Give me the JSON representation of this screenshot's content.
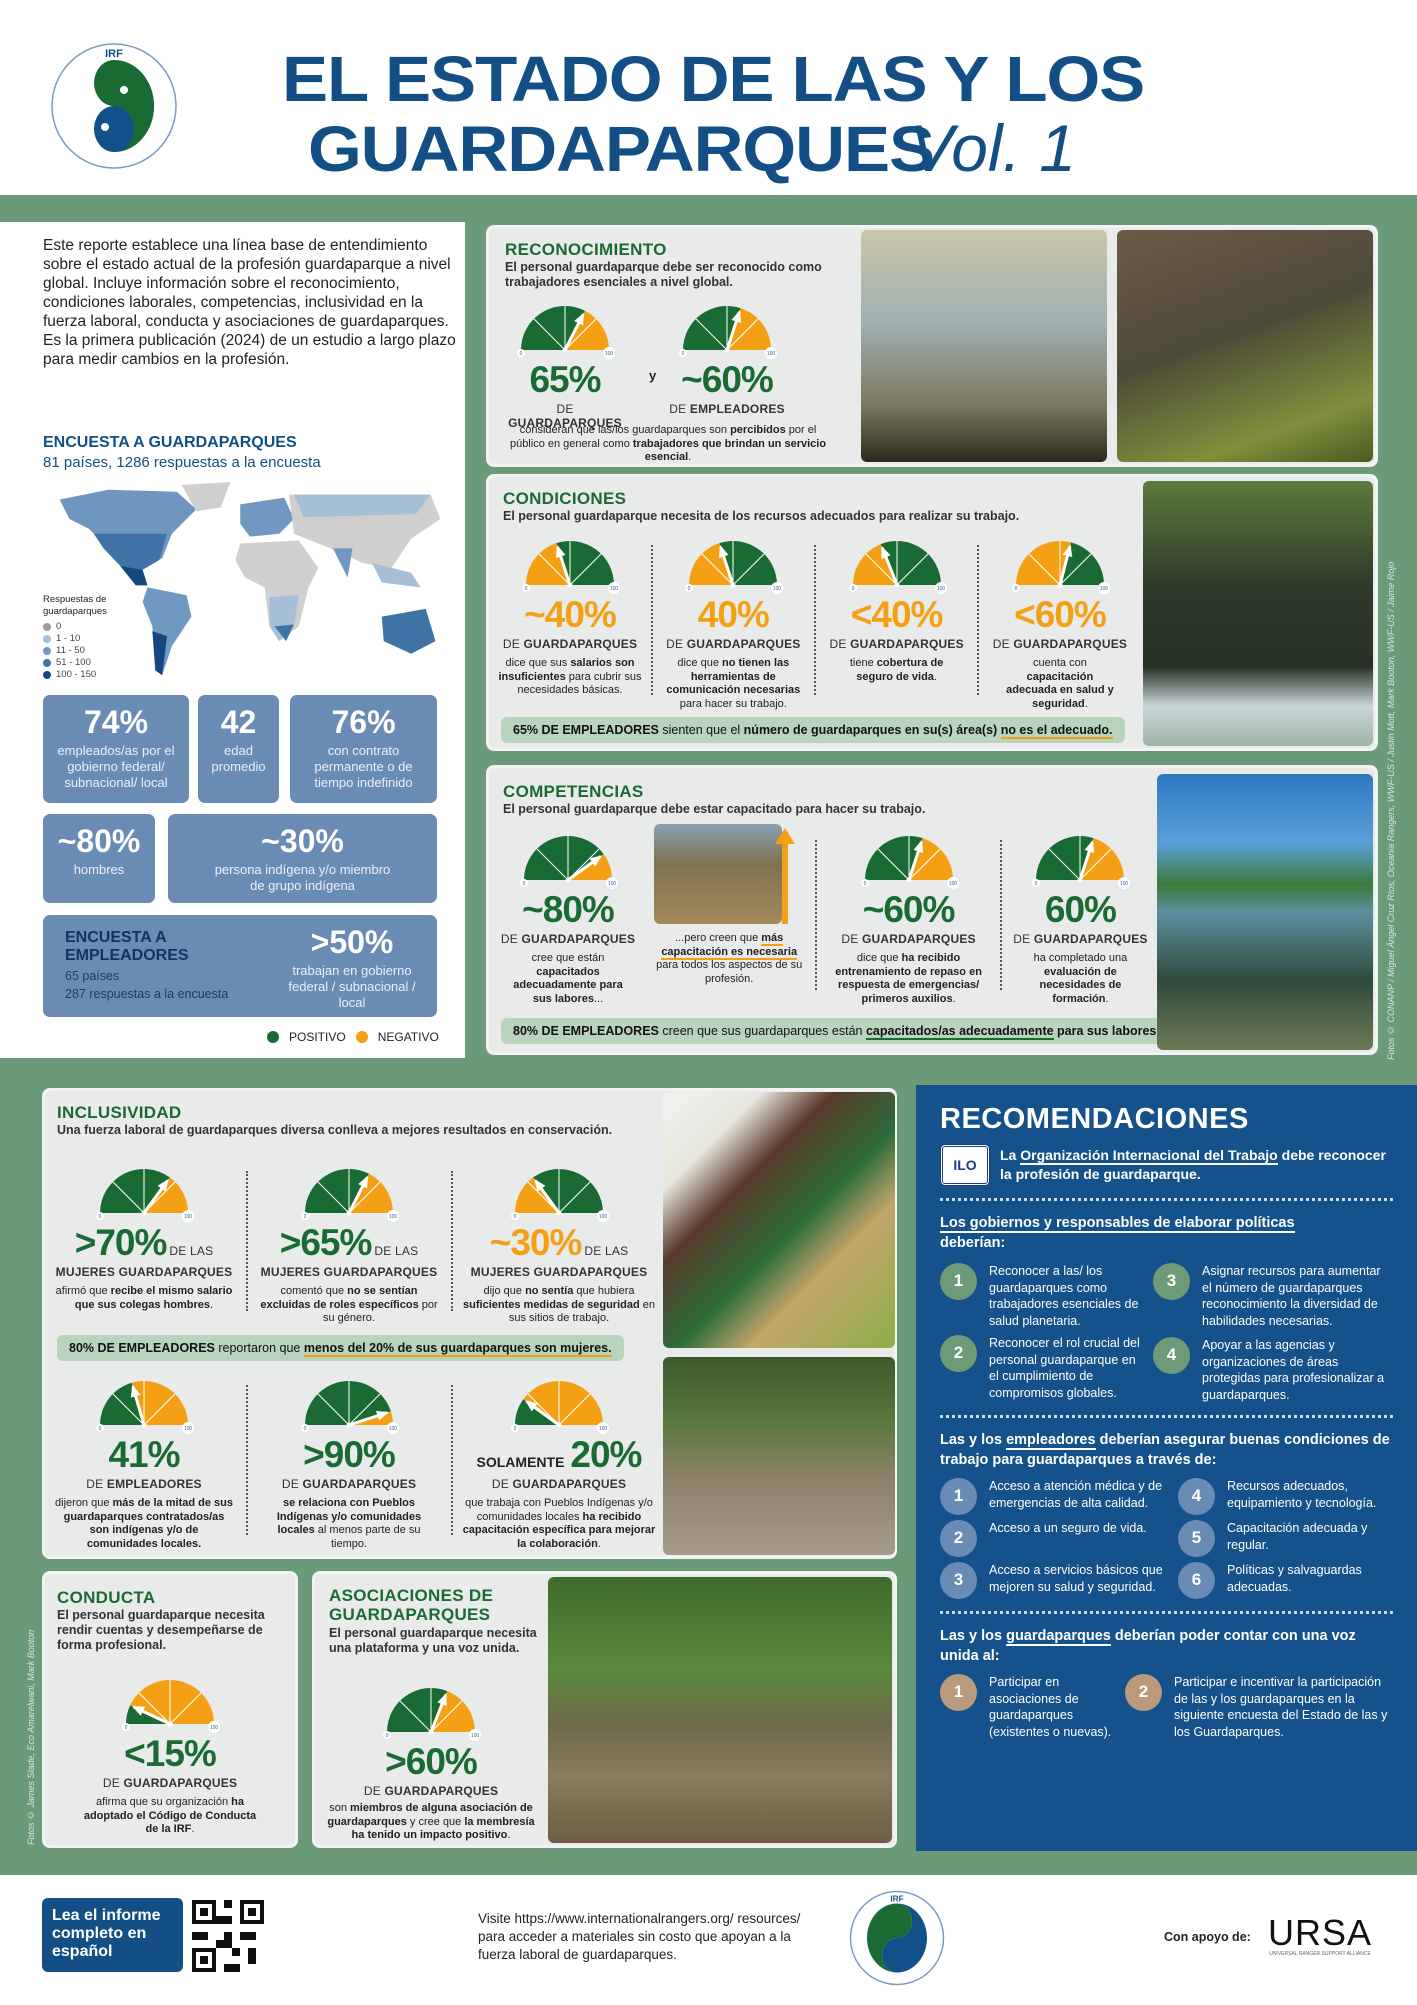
{
  "colors": {
    "positive": "#1a6b33",
    "negative": "#f4a015",
    "navy": "#134f85",
    "stat_box": "#6a8cb4",
    "background": "#6b9a78",
    "card": "#e9eaea",
    "bar": "#b9d4bd",
    "rec_circle_green": "#6f9a77",
    "rec_circle_blue": "#6a8cb4",
    "rec_circle_tan": "#b99a7c"
  },
  "logo": {
    "acronym": "IRF",
    "ring_text": "INTERNATIONAL RANGER FEDERATION"
  },
  "header": {
    "title_line1": "EL ESTADO DE LAS Y LOS",
    "title_line2": "GUARDAPARQUES",
    "title_vol": "Vol. 1"
  },
  "intro": "Este reporte establece una línea base de entendimiento sobre el estado actual de la profesión guardaparque a nivel global. Incluye información sobre el reconocimiento, condiciones laborales, competencias, inclusividad en la fuerza laboral, conducta y asociaciones de guardaparques. Es la primera publicación (2024) de un estudio a largo plazo para medir cambios en la profesión.",
  "ranger_survey": {
    "title": "ENCUESTA A GUARDAPARQUES",
    "subtitle": "81 países, 1286 respuestas a la encuesta",
    "legend_title": "Respuestas de guardaparques",
    "legend": [
      {
        "label": "0",
        "color": "#9a9a9a"
      },
      {
        "label": "1 - 10",
        "color": "#a7bfd6"
      },
      {
        "label": "11 - 50",
        "color": "#7198c0"
      },
      {
        "label": "51 - 100",
        "color": "#3f72a5"
      },
      {
        "label": "100 - 150",
        "color": "#12487e"
      }
    ]
  },
  "stats": [
    {
      "value": "74%",
      "label": "empleados/as por el gobierno federal/ subnacional/ local"
    },
    {
      "value": "42",
      "label": "edad promedio"
    },
    {
      "value": "76%",
      "label": "con contrato permanente o de tiempo indefinido"
    },
    {
      "value": "~80%",
      "label": "hombres"
    },
    {
      "value": "~30%",
      "label": "persona indígena y/o miembro de grupo indígena"
    }
  ],
  "employer_survey": {
    "title": "ENCUESTA A EMPLEADORES",
    "countries": "65 países",
    "responses": "287 respuestas a la encuesta",
    "value": ">50%",
    "label": "trabajan en gobierno federal / subnacional / local"
  },
  "key": {
    "positive": "POSITIVO",
    "negative": "NEGATIVO"
  },
  "gauge_scale": {
    "min": "0",
    "max": "100"
  },
  "reconocimiento": {
    "title": "RECONOCIMIENTO",
    "subtitle": "El personal guardaparque debe ser reconocido como trabajadores esenciales a nivel global.",
    "joiner": "y",
    "stats": [
      {
        "value": "65%",
        "gauge": 65,
        "left": "positive",
        "prefix": "DE",
        "group": "GUARDAPARQUES"
      },
      {
        "value": "~60%",
        "gauge": 60,
        "left": "positive",
        "prefix": "DE",
        "group": "EMPLEADORES"
      }
    ],
    "desc": [
      {
        "t": "consideran que las/los guardaparques son "
      },
      {
        "t": "percibidos",
        "b": true
      },
      {
        "t": " por el público en general como "
      },
      {
        "t": "trabajadores que brindan un servicio esencial",
        "b": true
      },
      {
        "t": "."
      }
    ]
  },
  "condiciones": {
    "title": "CONDICIONES",
    "subtitle": "El personal guardaparque necesita de los recursos adecuados para realizar su trabajo.",
    "stats": [
      {
        "value": "~40%",
        "gauge": 40,
        "left": "negative",
        "prefix": "DE",
        "group": "GUARDAPARQUES",
        "desc": [
          {
            "t": "dice que sus "
          },
          {
            "t": "salarios son insuficientes",
            "b": true
          },
          {
            "t": " para cubrir sus necesidades básicas."
          }
        ]
      },
      {
        "value": "40%",
        "gauge": 40,
        "left": "negative",
        "prefix": "DE",
        "group": "GUARDAPARQUES",
        "desc": [
          {
            "t": "dice que "
          },
          {
            "t": "no tienen las herramientas de comunicación necesarias",
            "b": true
          },
          {
            "t": " para hacer su trabajo."
          }
        ]
      },
      {
        "value": "<40%",
        "gauge": 38,
        "left": "negative",
        "prefix": "DE",
        "group": "GUARDAPARQUES",
        "desc": [
          {
            "t": "tiene "
          },
          {
            "t": "cobertura de seguro de vida",
            "b": true
          },
          {
            "t": "."
          }
        ]
      },
      {
        "value": "<60%",
        "gauge": 58,
        "left": "negative",
        "prefix": "DE",
        "group": "GUARDAPARQUES",
        "desc": [
          {
            "t": "cuenta con "
          },
          {
            "t": "capacitación adecuada en salud y seguridad",
            "b": true
          },
          {
            "t": "."
          }
        ]
      }
    ],
    "bar": [
      {
        "t": "65% DE EMPLEADORES",
        "b": true
      },
      {
        "t": " sienten que el "
      },
      {
        "t": "número de guardaparques en su(s) área(s) ",
        "b": true
      },
      {
        "t": "no es el adecuado.",
        "u": true
      }
    ]
  },
  "competencias": {
    "title": "COMPETENCIAS",
    "subtitle": "El personal guardaparque debe estar capacitado para hacer su trabajo.",
    "stats": [
      {
        "value": "~80%",
        "gauge": 80,
        "left": "positive",
        "prefix": "DE",
        "group": "GUARDAPARQUES",
        "desc": [
          {
            "t": "cree que están "
          },
          {
            "t": "capacitados adecuadamente para sus labores",
            "b": true
          },
          {
            "t": "..."
          }
        ]
      },
      {
        "value": "~60%",
        "gauge": 60,
        "left": "positive",
        "prefix": "DE",
        "group": "GUARDAPARQUES",
        "desc": [
          {
            "t": "dice que "
          },
          {
            "t": "ha recibido entrenamiento de repaso en respuesta de emergencias/ primeros auxilios",
            "b": true
          },
          {
            "t": "."
          }
        ]
      },
      {
        "value": "60%",
        "gauge": 60,
        "left": "positive",
        "prefix": "DE",
        "group": "GUARDAPARQUES",
        "desc": [
          {
            "t": "ha completado una "
          },
          {
            "t": "evaluación de necesidades de formación",
            "b": true
          },
          {
            "t": "."
          }
        ]
      }
    ],
    "photo_caption": [
      {
        "t": "...pero creen que "
      },
      {
        "t": "más capacitación es necesaria",
        "b": true,
        "u": true
      },
      {
        "t": " para todos los aspectos de su profesión."
      }
    ],
    "bar": [
      {
        "t": "80% DE EMPLEADORES",
        "b": true
      },
      {
        "t": " creen que sus guardaparques están "
      },
      {
        "t": "capacitados/as adecuadamente",
        "ug": true
      },
      {
        "t": " para sus labores.",
        "b": true
      }
    ]
  },
  "photo_credit_right": "Fotos © CONANP / Miguel Ángel Cruz Ríos, Oceania Rangers, WWF-US / Justin Mott, Mark Booton, WWF-US / Jaime Rojo",
  "photo_credit_left": "Fotos © James Slade, Eco Amarelwani, Mark Booton",
  "inclusividad": {
    "title": "INCLUSIVIDAD",
    "subtitle": "Una fuerza laboral de guardaparques diversa conlleva a mejores resultados en conservación.",
    "stats": [
      {
        "value": ">70%",
        "gauge": 70,
        "left": "positive",
        "suffix": "DE LAS",
        "group": "MUJERES GUARDAPARQUES",
        "desc": [
          {
            "t": "afirmó que "
          },
          {
            "t": "recibe el mismo salario que sus colegas hombres",
            "b": true
          },
          {
            "t": "."
          }
        ]
      },
      {
        "value": ">65%",
        "gauge": 65,
        "left": "positive",
        "suffix": "DE LAS",
        "group": "MUJERES GUARDAPARQUES",
        "desc": [
          {
            "t": "comentó que "
          },
          {
            "t": "no se sentían excluidas de roles específicos",
            "b": true
          },
          {
            "t": " por su género."
          }
        ]
      },
      {
        "value": "~30%",
        "gauge": 30,
        "left": "negative",
        "suffix": "DE LAS",
        "group": "MUJERES GUARDAPARQUES",
        "desc": [
          {
            "t": "dijo que "
          },
          {
            "t": "no sentía",
            "b": true
          },
          {
            "t": " que hubiera "
          },
          {
            "t": "suficientes medidas de seguridad",
            "b": true
          },
          {
            "t": " en sus sitios de trabajo."
          }
        ]
      }
    ],
    "bar": [
      {
        "t": "80% DE EMPLEADORES",
        "b": true
      },
      {
        "t": " reportaron que "
      },
      {
        "t": "menos del 20% de sus guardaparques son mujeres.",
        "u": true
      }
    ],
    "stats2": [
      {
        "value": "41%",
        "gauge": 41,
        "left": "positive",
        "prefix": "DE",
        "group": "EMPLEADORES",
        "desc": [
          {
            "t": "dijeron que "
          },
          {
            "t": "más de la mitad de sus guardaparques contratados/as son indígenas y/o de comunidades locales.",
            "b": true
          }
        ]
      },
      {
        "value": ">90%",
        "gauge": 90,
        "left": "positive",
        "prefix": "DE",
        "group": "GUARDAPARQUES",
        "desc": [
          {
            "t": "se relaciona con Pueblos Indígenas y/o comunidades locales",
            "b": true
          },
          {
            "t": " al menos parte de su tiempo."
          }
        ]
      },
      {
        "value": "20%",
        "lead": "SOLAMENTE",
        "gauge": 20,
        "left": "positive",
        "prefix": "DE",
        "group": "GUARDAPARQUES",
        "desc": [
          {
            "t": "que trabaja con Pueblos Indígenas y/o comunidades locales "
          },
          {
            "t": "ha recibido capacitación específica para mejorar la colaboración",
            "b": true
          },
          {
            "t": "."
          }
        ]
      }
    ]
  },
  "conducta": {
    "title": "CONDUCTA",
    "subtitle": "El personal guardaparque necesita rendir cuentas y desempeñarse de forma profesional.",
    "stat": {
      "value": "<15%",
      "gauge": 14,
      "left": "positive",
      "prefix": "DE",
      "group": "GUARDAPARQUES",
      "desc": [
        {
          "t": "afirma que su organización "
        },
        {
          "t": "ha adoptado el Código de Conducta de la IRF",
          "b": true
        },
        {
          "t": "."
        }
      ]
    }
  },
  "asociaciones": {
    "title": "ASOCIACIONES DE GUARDAPARQUES",
    "subtitle": "El personal guardaparque necesita una plataforma y una voz unida.",
    "stat": {
      "value": ">60%",
      "gauge": 62,
      "left": "positive",
      "prefix": "DE",
      "group": "GUARDAPARQUES",
      "desc": [
        {
          "t": "son "
        },
        {
          "t": "miembros de alguna asociación de guardaparques",
          "b": true
        },
        {
          "t": " y cree que "
        },
        {
          "t": "la membresía ha tenido un impacto positivo",
          "b": true
        },
        {
          "t": "."
        }
      ]
    }
  },
  "recomendaciones": {
    "title": "RECOMENDACIONES",
    "ilo_logo": "ILO",
    "ilo": [
      {
        "t": "La "
      },
      {
        "t": "Organización Internacional del Trabajo",
        "u": true
      },
      {
        "t": " debe reconocer la profesión de guardaparque."
      }
    ],
    "gov_heading": [
      {
        "t": "Los gobiernos y responsables de elaborar políticas",
        "u": true
      },
      {
        "t": " deberían:"
      }
    ],
    "gov_items": [
      "Reconocer a las/ los guardaparques como trabajadores esenciales de salud planetaria.",
      "Reconocer el rol crucial del personal guardaparque en el cumplimiento de compromisos globales.",
      "Asignar recursos para aumentar el número de guardaparques reconocimiento la diversidad de habilidades necesarias.",
      "Apoyar a las agencias y organizaciones de áreas protegidas para profesionalizar a guardaparques."
    ],
    "emp_heading": [
      {
        "t": "Las y los "
      },
      {
        "t": "empleadores",
        "u": true
      },
      {
        "t": " deberían asegurar buenas condiciones de trabajo para guardaparques a través de:"
      }
    ],
    "emp_items": [
      "Acceso a atención médica y de emergencias de alta calidad.",
      "Acceso a un seguro de vida.",
      "Acceso a servicios básicos que mejoren su salud y seguridad.",
      "Recursos adecuados, equipamiento y tecnología.",
      "Capacitación adecuada y regular.",
      "Políticas y salvaguardas adecuadas."
    ],
    "ranger_heading": [
      {
        "t": "Las y los "
      },
      {
        "t": "guardaparques",
        "u": true
      },
      {
        "t": " deberían poder contar con una voz unida al:"
      }
    ],
    "ranger_items": [
      "Participar en asociaciones de guardaparques (existentes o nuevas).",
      "Participar e incentivar la participación de las y los guardaparques en la siguiente encuesta del Estado de las y los Guardaparques."
    ]
  },
  "footer": {
    "report_button": "Lea el informe completo en español",
    "visit_text": "Visite https://www.internationalrangers.org/ resources/ para acceder a materiales sin costo que apoyan a la fuerza laboral de guardaparques.",
    "support_label": "Con apoyo de:",
    "sponsor_logo": "URSA",
    "sponsor_tagline": "UNIVERSAL RANGER SUPPORT ALLIANCE"
  }
}
